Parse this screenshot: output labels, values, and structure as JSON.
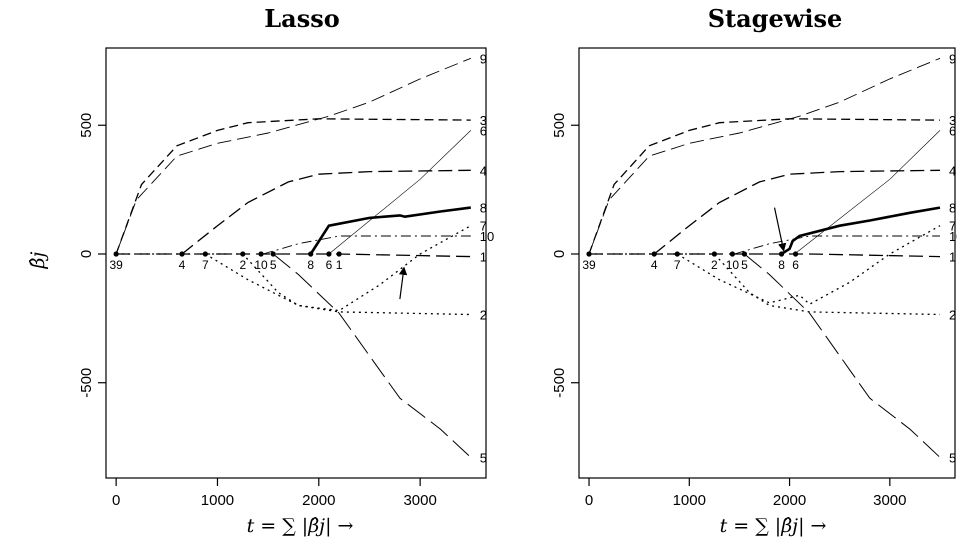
{
  "chart_data": [
    {
      "type": "line",
      "title": "Lasso",
      "xlabel": "t = ∑ |β̂j| →",
      "ylabel": "β̂j",
      "xlim": [
        -100,
        3650
      ],
      "ylim": [
        -870,
        800
      ],
      "xticks": [
        0,
        1000,
        2000,
        3000
      ],
      "yticks": [
        -500,
        0,
        500
      ],
      "series": [
        {
          "label": "1",
          "style": "dash-long",
          "width": 1.3,
          "points": [
            [
              0,
              0
            ],
            [
              2200,
              0
            ],
            [
              3500,
              -10
            ]
          ]
        },
        {
          "label": "2",
          "style": "dotted",
          "width": 1.3,
          "points": [
            [
              0,
              0
            ],
            [
              1250,
              0
            ],
            [
              1600,
              -150
            ],
            [
              1800,
              -200
            ],
            [
              2200,
              -225
            ],
            [
              3500,
              -235
            ]
          ]
        },
        {
          "label": "3",
          "style": "dash-med",
          "width": 1.3,
          "points": [
            [
              0,
              0
            ],
            [
              250,
              270
            ],
            [
              600,
              420
            ],
            [
              1000,
              480
            ],
            [
              1300,
              510
            ],
            [
              2000,
              525
            ],
            [
              3500,
              520
            ]
          ]
        },
        {
          "label": "4",
          "style": "dash-long",
          "width": 1.3,
          "points": [
            [
              650,
              0
            ],
            [
              1000,
              110
            ],
            [
              1300,
              200
            ],
            [
              1700,
              280
            ],
            [
              2000,
              310
            ],
            [
              2500,
              320
            ],
            [
              3500,
              325
            ]
          ]
        },
        {
          "label": "5",
          "style": "dash-xlong",
          "width": 1.0,
          "points": [
            [
              1550,
              0
            ],
            [
              1800,
              -80
            ],
            [
              2200,
              -230
            ],
            [
              2600,
              -450
            ],
            [
              2800,
              -560
            ],
            [
              3200,
              -680
            ],
            [
              3500,
              -790
            ]
          ]
        },
        {
          "label": "6",
          "style": "solid",
          "width": 0.6,
          "points": [
            [
              2100,
              0
            ],
            [
              3000,
              290
            ],
            [
              3500,
              480
            ]
          ]
        },
        {
          "label": "7",
          "style": "dotted",
          "width": 1.3,
          "points": [
            [
              880,
              0
            ],
            [
              1300,
              -100
            ],
            [
              1800,
              -200
            ],
            [
              2000,
              -210
            ],
            [
              2200,
              -220
            ],
            [
              2600,
              -120
            ],
            [
              3000,
              0
            ],
            [
              3500,
              110
            ]
          ]
        },
        {
          "label": "8",
          "style": "solid",
          "width": 2.6,
          "points": [
            [
              1920,
              0
            ],
            [
              2100,
              110
            ],
            [
              2500,
              140
            ],
            [
              2800,
              150
            ],
            [
              2850,
              145
            ],
            [
              3200,
              165
            ],
            [
              3500,
              180
            ]
          ]
        },
        {
          "label": "9",
          "style": "dash-long",
          "width": 0.9,
          "points": [
            [
              0,
              0
            ],
            [
              200,
              210
            ],
            [
              600,
              380
            ],
            [
              1000,
              430
            ],
            [
              1500,
              470
            ],
            [
              2100,
              535
            ],
            [
              2500,
              590
            ],
            [
              3000,
              680
            ],
            [
              3500,
              760
            ]
          ]
        },
        {
          "label": "10",
          "style": "dash-dot",
          "width": 0.9,
          "points": [
            [
              1450,
              0
            ],
            [
              1800,
              40
            ],
            [
              2200,
              70
            ],
            [
              3500,
              70
            ]
          ]
        }
      ],
      "event_labels": [
        {
          "label": "39",
          "x": 0
        },
        {
          "label": "4",
          "x": 650
        },
        {
          "label": "7",
          "x": 880
        },
        {
          "label": "2",
          "x": 1250
        },
        {
          "label": "10",
          "x": 1430
        },
        {
          "label": "5",
          "x": 1550
        },
        {
          "label": "8",
          "x": 1920
        },
        {
          "label": "6",
          "x": 2100
        },
        {
          "label": "1",
          "x": 2200
        }
      ],
      "arrow": {
        "from": [
          2800,
          -175
        ],
        "to": [
          2840,
          -55
        ]
      }
    },
    {
      "type": "line",
      "title": "Stagewise",
      "xlabel": "t = ∑ |β̂j| →",
      "ylabel": "",
      "xlim": [
        -100,
        3650
      ],
      "ylim": [
        -870,
        800
      ],
      "xticks": [
        0,
        1000,
        2000,
        3000
      ],
      "yticks": [
        -500,
        0,
        500
      ],
      "series": [
        {
          "label": "1",
          "style": "dash-long",
          "width": 1.3,
          "points": [
            [
              0,
              0
            ],
            [
              2200,
              0
            ],
            [
              3500,
              -10
            ]
          ]
        },
        {
          "label": "2",
          "style": "dotted",
          "width": 1.3,
          "points": [
            [
              0,
              0
            ],
            [
              1250,
              0
            ],
            [
              1600,
              -150
            ],
            [
              1800,
              -200
            ],
            [
              2200,
              -225
            ],
            [
              3500,
              -235
            ]
          ]
        },
        {
          "label": "3",
          "style": "dash-med",
          "width": 1.3,
          "points": [
            [
              0,
              0
            ],
            [
              250,
              270
            ],
            [
              600,
              420
            ],
            [
              1000,
              480
            ],
            [
              1300,
              510
            ],
            [
              2000,
              525
            ],
            [
              3500,
              520
            ]
          ]
        },
        {
          "label": "4",
          "style": "dash-long",
          "width": 1.3,
          "points": [
            [
              650,
              0
            ],
            [
              1000,
              110
            ],
            [
              1300,
              200
            ],
            [
              1700,
              280
            ],
            [
              2000,
              310
            ],
            [
              2500,
              320
            ],
            [
              3500,
              325
            ]
          ]
        },
        {
          "label": "5",
          "style": "dash-xlong",
          "width": 1.0,
          "points": [
            [
              1550,
              0
            ],
            [
              1800,
              -80
            ],
            [
              2200,
              -230
            ],
            [
              2600,
              -450
            ],
            [
              2800,
              -560
            ],
            [
              3200,
              -680
            ],
            [
              3500,
              -790
            ]
          ]
        },
        {
          "label": "6",
          "style": "solid",
          "width": 0.6,
          "points": [
            [
              2050,
              0
            ],
            [
              3000,
              290
            ],
            [
              3500,
              480
            ]
          ]
        },
        {
          "label": "7",
          "style": "dotted",
          "width": 1.3,
          "points": [
            [
              880,
              0
            ],
            [
              1300,
              -100
            ],
            [
              1800,
              -190
            ],
            [
              2000,
              -170
            ],
            [
              2100,
              -160
            ],
            [
              2200,
              -195
            ],
            [
              2600,
              -110
            ],
            [
              3000,
              0
            ],
            [
              3500,
              110
            ]
          ]
        },
        {
          "label": "8",
          "style": "solid",
          "width": 2.6,
          "points": [
            [
              1920,
              0
            ],
            [
              2000,
              20
            ],
            [
              2030,
              50
            ],
            [
              2100,
              70
            ],
            [
              2500,
              110
            ],
            [
              2800,
              130
            ],
            [
              3200,
              160
            ],
            [
              3500,
              180
            ]
          ]
        },
        {
          "label": "9",
          "style": "dash-long",
          "width": 0.9,
          "points": [
            [
              0,
              0
            ],
            [
              200,
              210
            ],
            [
              600,
              380
            ],
            [
              1000,
              430
            ],
            [
              1500,
              470
            ],
            [
              2100,
              535
            ],
            [
              2500,
              590
            ],
            [
              3000,
              680
            ],
            [
              3500,
              760
            ]
          ]
        },
        {
          "label": "10",
          "style": "dash-dot",
          "width": 0.9,
          "points": [
            [
              1450,
              0
            ],
            [
              1800,
              40
            ],
            [
              2200,
              70
            ],
            [
              3500,
              70
            ]
          ]
        }
      ],
      "event_labels": [
        {
          "label": "39",
          "x": 0
        },
        {
          "label": "4",
          "x": 650
        },
        {
          "label": "7",
          "x": 880
        },
        {
          "label": "2",
          "x": 1250
        },
        {
          "label": "10",
          "x": 1430
        },
        {
          "label": "5",
          "x": 1550
        },
        {
          "label": "8",
          "x": 1920
        },
        {
          "label": "6",
          "x": 2060
        }
      ],
      "arrow": {
        "from": [
          1850,
          180
        ],
        "to": [
          1940,
          15
        ]
      }
    }
  ]
}
